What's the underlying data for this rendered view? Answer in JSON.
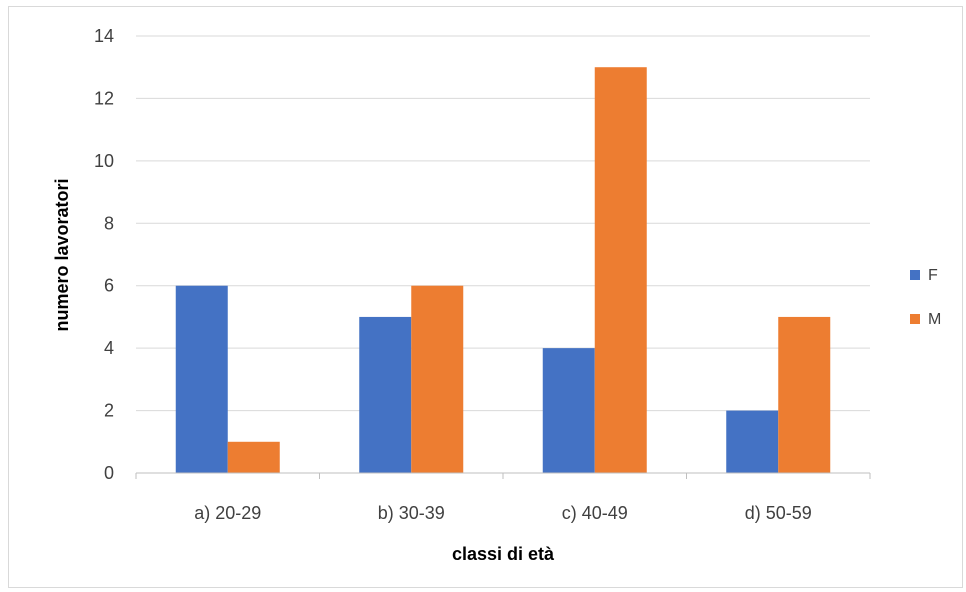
{
  "chart_data": {
    "type": "bar",
    "title": "",
    "xlabel": "classi di età",
    "ylabel": "numero lavoratori",
    "categories": [
      "a) 20-29",
      "b) 30-39",
      "c) 40-49",
      "d) 50-59"
    ],
    "series": [
      {
        "name": "F",
        "color": "#4472C4",
        "values": [
          6,
          5,
          4,
          2
        ]
      },
      {
        "name": "M",
        "color": "#ED7D31",
        "values": [
          1,
          6,
          13,
          5
        ]
      }
    ],
    "ylim": [
      0,
      14
    ],
    "yticks": [
      "0",
      "2",
      "4",
      "6",
      "8",
      "10",
      "12",
      "14"
    ],
    "grid": true,
    "legend_position": "right"
  }
}
